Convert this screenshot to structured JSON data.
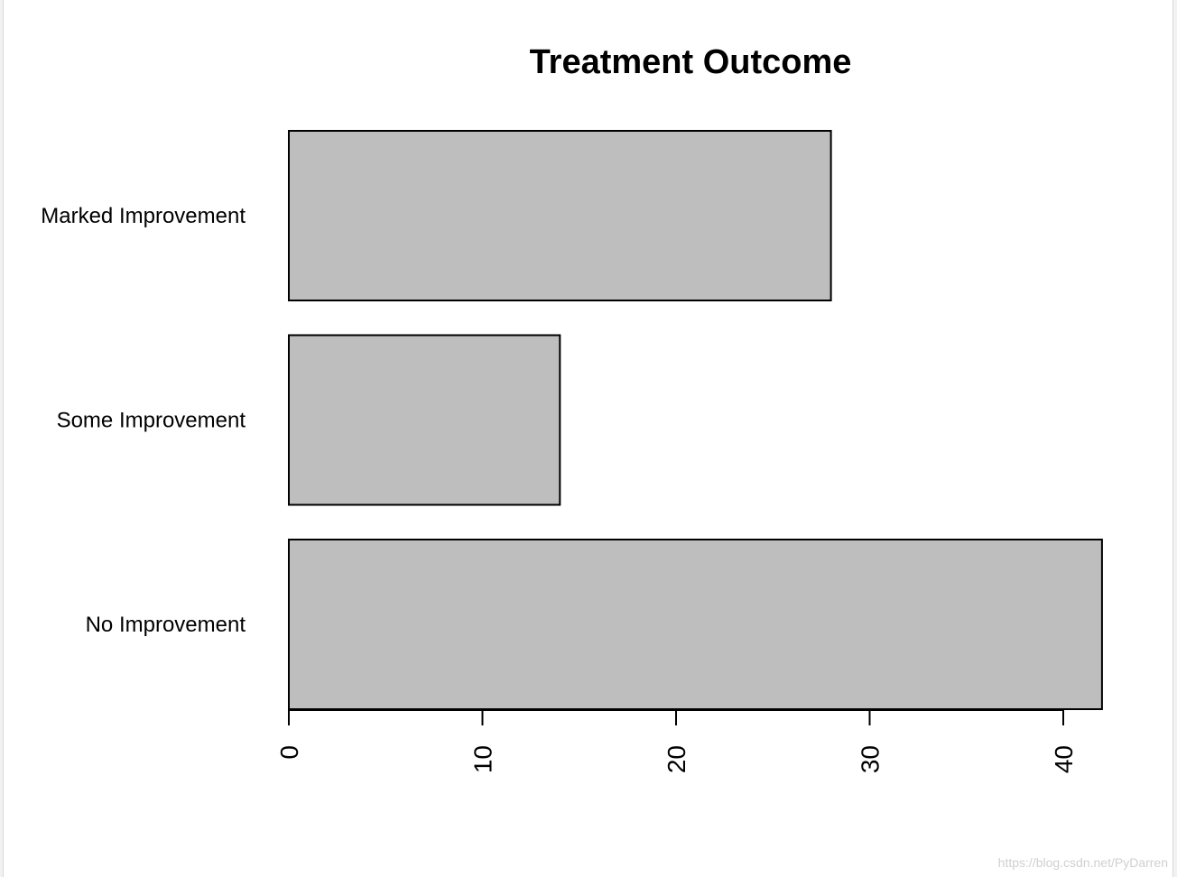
{
  "chart_data": {
    "type": "bar",
    "orientation": "horizontal",
    "title": "Treatment Outcome",
    "categories": [
      "No Improvement",
      "Some Improvement",
      "Marked Improvement"
    ],
    "values": [
      42,
      14,
      28
    ],
    "xlabel": "",
    "ylabel": "",
    "xlim": [
      0,
      42
    ],
    "xticks": [
      0,
      10,
      20,
      30,
      40
    ],
    "tick_label_orientation": "vertical",
    "grid": false,
    "legend": "none",
    "bar_color": "#bebebe",
    "border_color": "#000000"
  },
  "watermark": "https://blog.csdn.net/PyDarren"
}
